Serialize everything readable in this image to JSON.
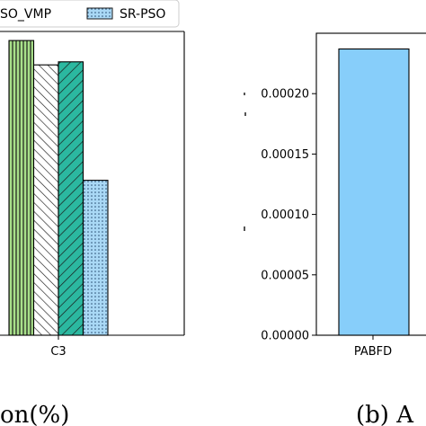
{
  "legend": {
    "placement": "top",
    "entries": [
      {
        "label": "SO_VMP",
        "pattern": "none",
        "fill": "#ffffff"
      },
      {
        "label": "SR-PSO",
        "pattern": "dots",
        "fill": "#a9d8f5"
      }
    ]
  },
  "chart_data": [
    {
      "type": "bar",
      "caption": "on(%)",
      "categories": [
        "C3"
      ],
      "series": [
        {
          "pattern": "vertical-lines",
          "fill": "#a8e08a",
          "values": [
            97
          ]
        },
        {
          "pattern": "diagonal-back",
          "fill": "#ffffff",
          "values": [
            89
          ]
        },
        {
          "pattern": "diagonal-forward",
          "fill": "#2bb8a0",
          "values": [
            90
          ]
        },
        {
          "name": "SR-PSO",
          "pattern": "dots",
          "fill": "#a9d8f5",
          "values": [
            51
          ]
        }
      ],
      "ylim": [
        0,
        100
      ],
      "grid": false
    },
    {
      "type": "bar",
      "caption": "(b) A",
      "categories": [
        "PABFD"
      ],
      "values": [
        0.000237
      ],
      "fill": "#87cefa",
      "ylim": [
        0,
        0.00025
      ],
      "yticks": [
        "0.00000",
        "0.00005",
        "0.00010",
        "0.00015",
        "0.00020"
      ],
      "grid": false
    }
  ]
}
